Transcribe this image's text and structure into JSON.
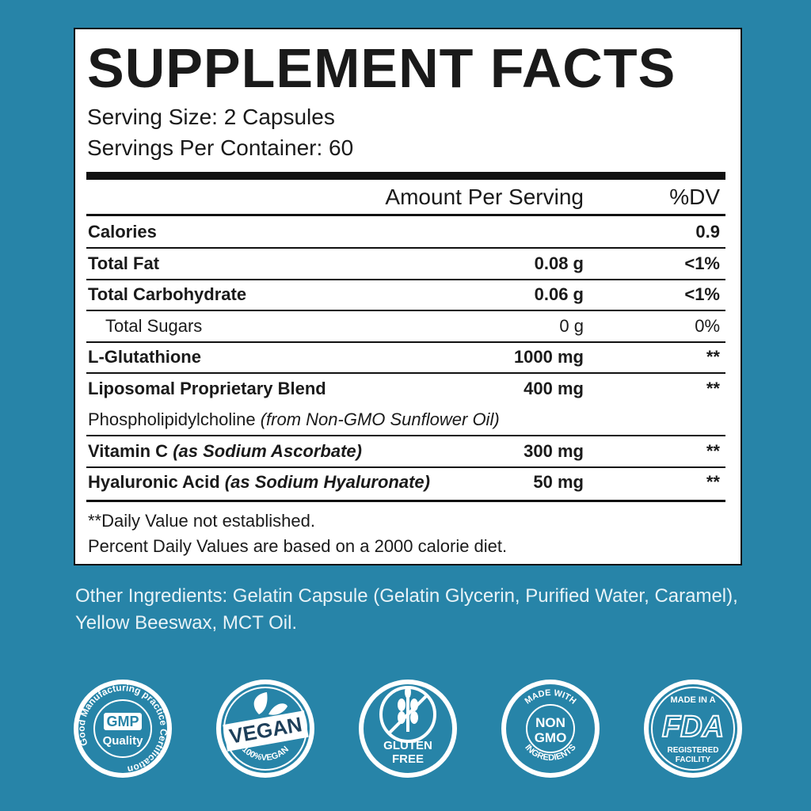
{
  "label": {
    "title": "SUPPLEMENT FACTS",
    "serving_size": "Serving Size: 2 Capsules",
    "servings_per_container": "Servings Per Container: 60",
    "header": {
      "amount": "Amount Per Serving",
      "dv": "%DV"
    },
    "rows": [
      {
        "name": "Calories",
        "dv": "0.9"
      },
      {
        "name": "Total Fat",
        "amount": "0.08 g",
        "dv": "<1%"
      },
      {
        "name": "Total Carbohydrate",
        "amount": "0.06 g",
        "dv": "<1%"
      },
      {
        "name": "Total Sugars",
        "amount": "0 g",
        "dv": "0%"
      },
      {
        "name": "L-Glutathione",
        "amount": "1000 mg",
        "dv": "**"
      },
      {
        "name": "Liposomal Proprietary Blend",
        "amount": "400 mg",
        "dv": "**"
      },
      {
        "name": "Phospholipidylcholine",
        "note": "(from Non-GMO Sunflower Oil)"
      },
      {
        "name": "Vitamin C",
        "note": "(as Sodium Ascorbate)",
        "amount": "300 mg",
        "dv": "**"
      },
      {
        "name": "Hyaluronic Acid",
        "note": "(as Sodium Hyaluronate)",
        "amount": "50 mg",
        "dv": "**"
      }
    ],
    "footnotes": [
      "**Daily Value not established.",
      "Percent Daily Values are based on a 2000 calorie diet."
    ]
  },
  "other_ingredients": "Other Ingredients: Gelatin Capsule (Gelatin Glycerin, Purified Water, Caramel), Yellow Beeswax, MCT Oil.",
  "badges": [
    {
      "arc": "Good Manufacturing practice Certification",
      "main": "GMP",
      "sub": "Quality"
    },
    {
      "main": "VEGAN",
      "arc": "100%VEGAN"
    },
    {
      "main": "GLUTEN",
      "sub": "FREE"
    },
    {
      "arc_top": "MADE WITH",
      "main": "NON",
      "sub": "GMO",
      "arc_bottom": "INGREDIENTS"
    },
    {
      "top": "MADE IN A",
      "main": "FDA",
      "sub": "REGISTERED",
      "sub2": "FACILITY"
    }
  ]
}
